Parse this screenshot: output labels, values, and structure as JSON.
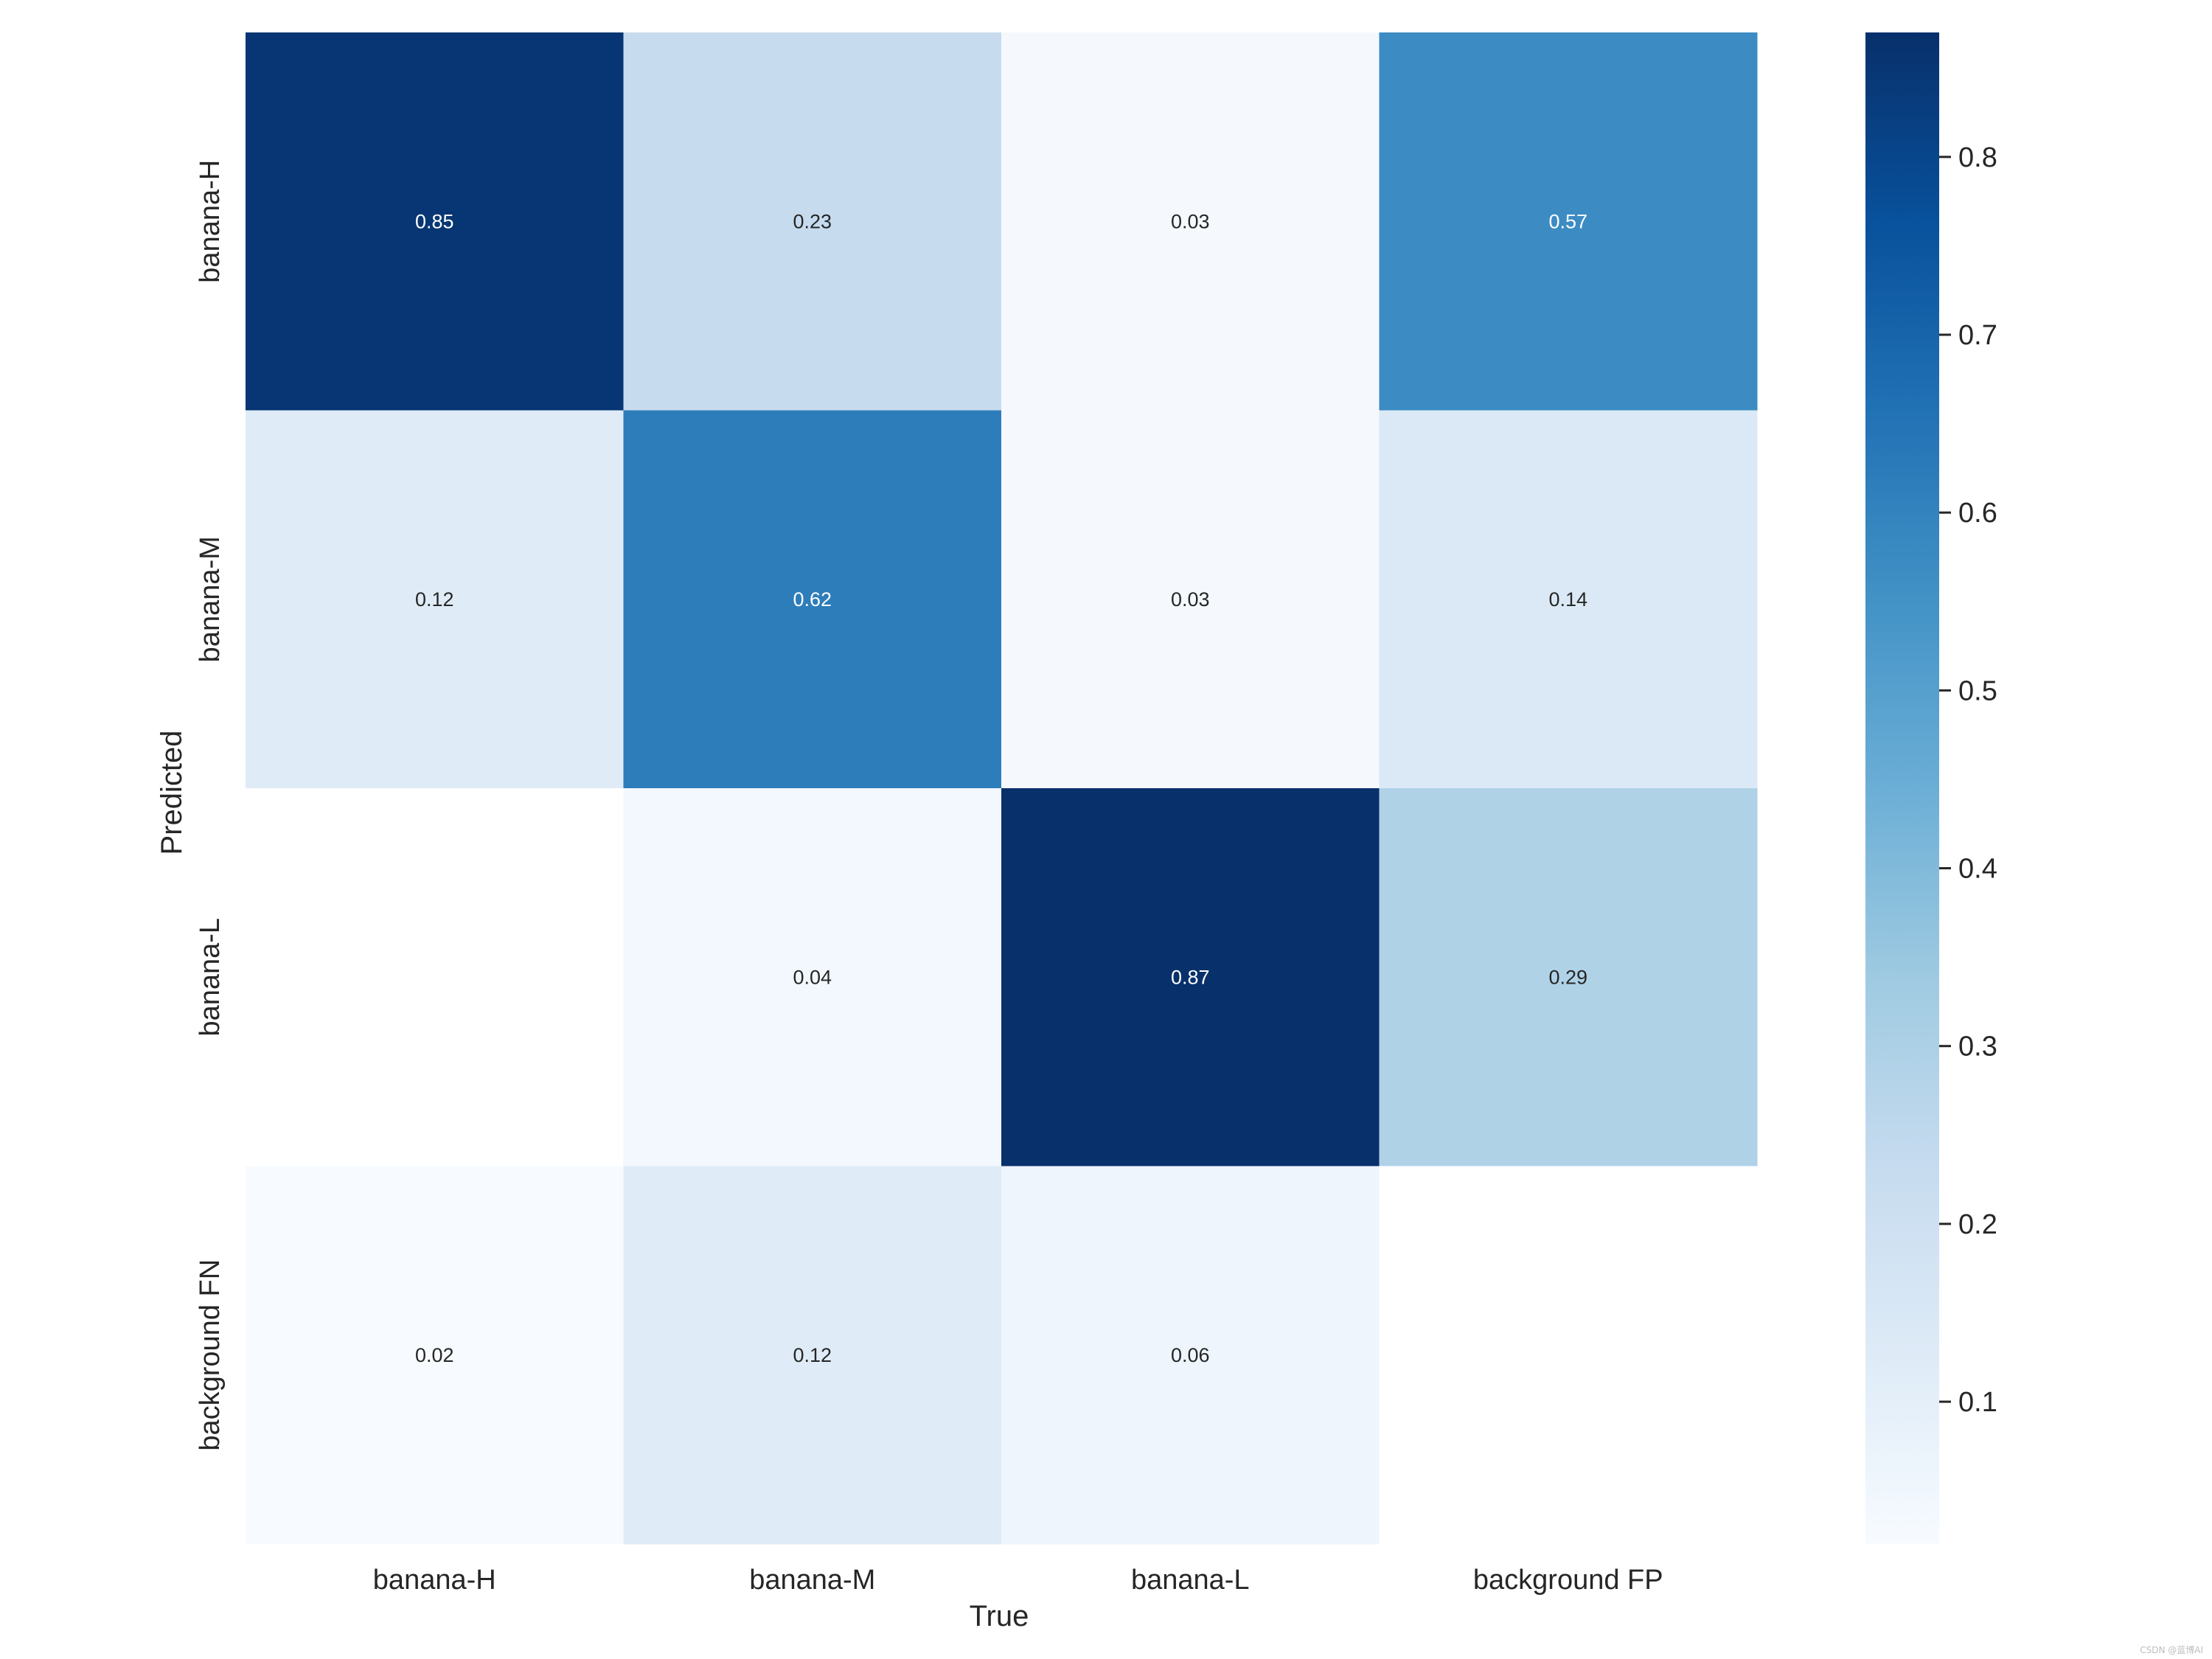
{
  "chart_data": {
    "type": "heatmap",
    "x_categories": [
      "banana-H",
      "banana-M",
      "banana-L",
      "background FP"
    ],
    "y_categories": [
      "banana-H",
      "banana-M",
      "banana-L",
      "background FN"
    ],
    "values": [
      [
        0.85,
        0.23,
        0.03,
        0.57
      ],
      [
        0.12,
        0.62,
        0.03,
        0.14
      ],
      [
        null,
        0.04,
        0.87,
        0.29
      ],
      [
        0.02,
        0.12,
        0.06,
        null
      ]
    ],
    "xlabel": "True",
    "ylabel": "Predicted",
    "colormap": "Blues",
    "colorbar": {
      "range": [
        0.02,
        0.87
      ],
      "ticks": [
        0.1,
        0.2,
        0.3,
        0.4,
        0.5,
        0.6,
        0.7,
        0.8
      ],
      "tick_labels": [
        "0.1",
        "0.2",
        "0.3",
        "0.4",
        "0.5",
        "0.6",
        "0.7",
        "0.8"
      ]
    },
    "colors": {
      "low": "#f7fbff",
      "high": "#08306b",
      "dark_text": "#262626",
      "light_text": "#ffffff"
    }
  },
  "watermark": "CSDN @蓝博AI"
}
